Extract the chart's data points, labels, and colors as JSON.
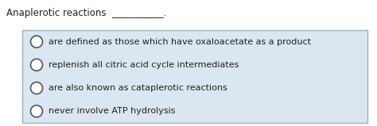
{
  "title": "Anaplerotic reactions",
  "blank": "___________.",
  "bg_color": "#ffffff",
  "box_bg_color": "#dae6f0",
  "box_edge_color": "#9ab0be",
  "options": [
    "are defined as those which have oxaloacetate as a product",
    "replenish all citric acid cycle intermediates",
    "are also known as cataplerotic reactions",
    "never involve ATP hydrolysis"
  ],
  "title_fontsize": 8.5,
  "option_fontsize": 8.0,
  "circle_color": "#ffffff",
  "circle_edge_color": "#555555",
  "circle_linewidth": 1.2
}
